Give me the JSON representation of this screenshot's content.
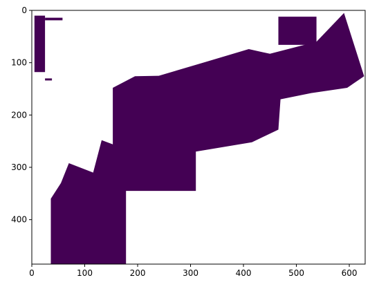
{
  "chart_data": {
    "type": "heatmap",
    "title": "",
    "xlabel": "",
    "ylabel": "",
    "xlim": [
      0,
      630
    ],
    "ylim": [
      485,
      0
    ],
    "y_inverted": true,
    "xticks": [
      0,
      100,
      200,
      300,
      400,
      500,
      600
    ],
    "yticks": [
      0,
      100,
      200,
      300,
      400
    ],
    "grid": false,
    "fill_color": "#440154",
    "background_color": "#ffffff",
    "regions": [
      {
        "name": "left-vertical-strip",
        "points": [
          [
            5,
            10
          ],
          [
            25,
            10
          ],
          [
            25,
            118
          ],
          [
            5,
            118
          ]
        ]
      },
      {
        "name": "left-strip-tick-top",
        "points": [
          [
            25,
            14
          ],
          [
            58,
            14
          ],
          [
            58,
            19
          ],
          [
            25,
            19
          ]
        ]
      },
      {
        "name": "left-strip-tick-bottom",
        "points": [
          [
            25,
            130
          ],
          [
            38,
            130
          ],
          [
            38,
            134
          ],
          [
            25,
            134
          ]
        ]
      },
      {
        "name": "top-right-notch",
        "points": [
          [
            466,
            12
          ],
          [
            538,
            12
          ],
          [
            538,
            66
          ],
          [
            466,
            66
          ]
        ]
      },
      {
        "name": "large-band",
        "points": [
          [
            153,
            148
          ],
          [
            195,
            126
          ],
          [
            240,
            125
          ],
          [
            330,
            98
          ],
          [
            410,
            74
          ],
          [
            450,
            83
          ],
          [
            538,
            60
          ],
          [
            590,
            5
          ],
          [
            628,
            126
          ],
          [
            596,
            148
          ],
          [
            528,
            158
          ],
          [
            470,
            170
          ],
          [
            466,
            228
          ],
          [
            416,
            252
          ],
          [
            310,
            270
          ],
          [
            310,
            345
          ],
          [
            178,
            345
          ],
          [
            178,
            485
          ],
          [
            36,
            485
          ],
          [
            36,
            360
          ],
          [
            55,
            330
          ],
          [
            70,
            292
          ],
          [
            116,
            310
          ],
          [
            132,
            248
          ],
          [
            153,
            256
          ]
        ]
      }
    ]
  }
}
